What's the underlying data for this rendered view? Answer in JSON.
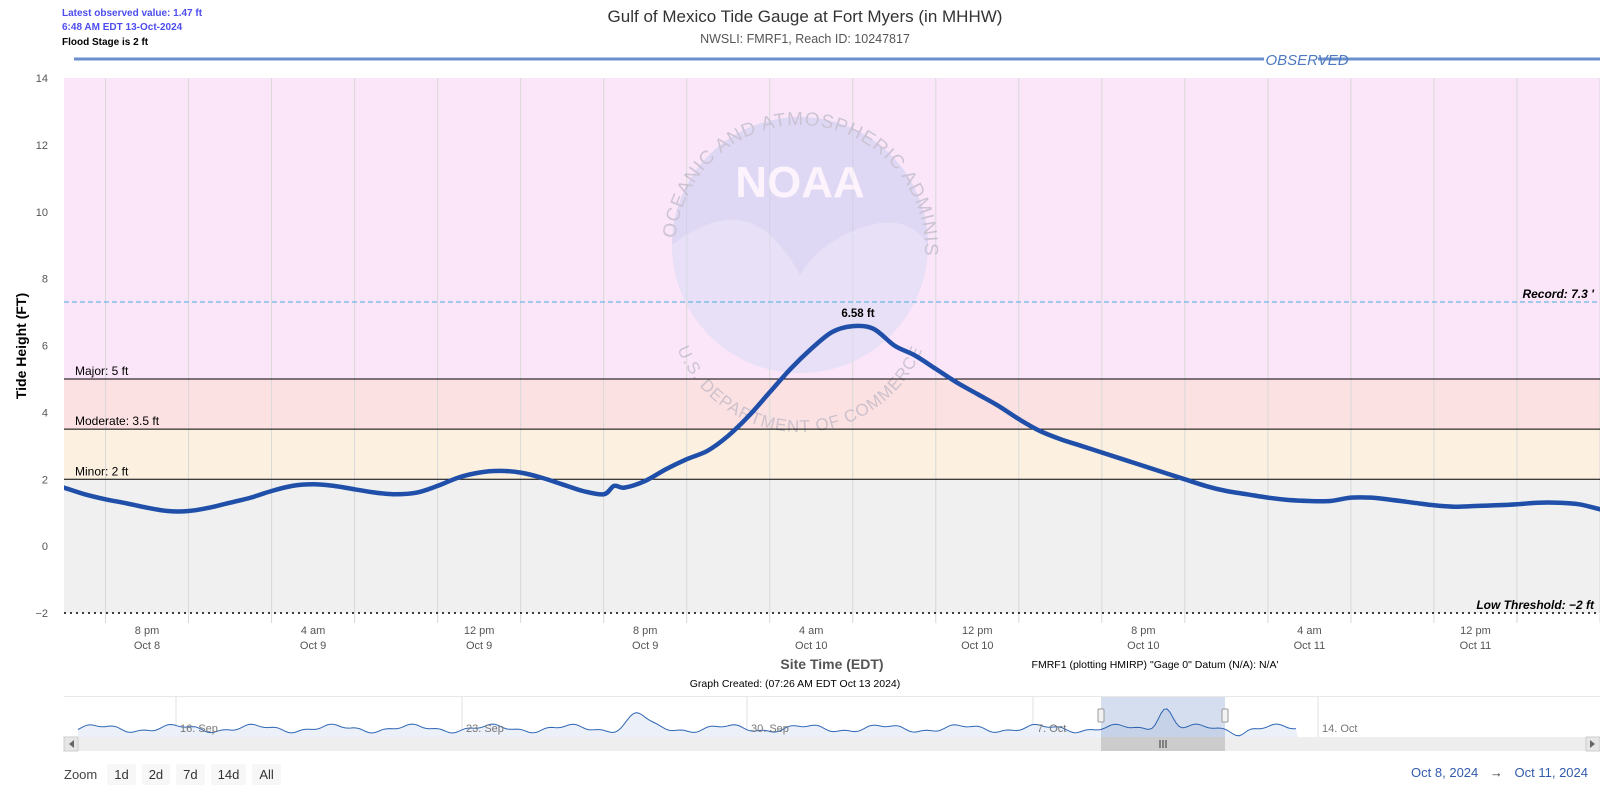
{
  "header": {
    "latest_value": "Latest observed value: 1.47 ft",
    "latest_time": "6:48 AM EDT 13-Oct-2024",
    "flood_stage": "Flood Stage is 2 ft"
  },
  "zoom": {
    "label": "Zoom",
    "buttons": [
      "1d",
      "2d",
      "7d",
      "14d",
      "All"
    ]
  },
  "range": {
    "from": "Oct 8, 2024",
    "arrow": "→",
    "to": "Oct 11, 2024"
  },
  "colors": {
    "series": "#1f4fa8",
    "observed_bar": "#6a8fcc",
    "major_zone": "#fbe6f9",
    "moderate_zone": "#fce1e3",
    "minor_zone": "#fcf1e0",
    "below_zone": "#f0f0f0",
    "record_line": "#6cb6e6",
    "navigator_fill": "#ecf0f8",
    "navigator_line": "#2f67b5"
  },
  "chart_data": {
    "type": "line",
    "title": "Gulf of Mexico Tide Gauge at Fort Myers (in MHHW)",
    "subtitle": "NWSLI: FMRF1, Reach ID: 10247817",
    "observed_label": "OBSERVED",
    "xlabel": "Site Time (EDT)",
    "ylabel": "Tide Height (FT)",
    "datum_note": "FMRF1 (plotting HMIRP) \"Gage 0\" Datum (N/A): N/A'",
    "created_note": "Graph Created: (07:26 AM EDT Oct 13 2024)",
    "ylim": [
      -2,
      14
    ],
    "yticks": [
      -2,
      0,
      2,
      4,
      6,
      8,
      10,
      12,
      14
    ],
    "xlim": [
      "2024-10-08T16:00",
      "2024-10-11T18:00"
    ],
    "xticks": [
      {
        "time": "2024-10-08T20:00",
        "label": "8 pm",
        "date": "Oct 8"
      },
      {
        "time": "2024-10-09T04:00",
        "label": "4 am",
        "date": "Oct 9"
      },
      {
        "time": "2024-10-09T12:00",
        "label": "12 pm",
        "date": "Oct 9"
      },
      {
        "time": "2024-10-09T20:00",
        "label": "8 pm",
        "date": "Oct 9"
      },
      {
        "time": "2024-10-10T04:00",
        "label": "4 am",
        "date": "Oct 10"
      },
      {
        "time": "2024-10-10T12:00",
        "label": "12 pm",
        "date": "Oct 10"
      },
      {
        "time": "2024-10-10T20:00",
        "label": "8 pm",
        "date": "Oct 10"
      },
      {
        "time": "2024-10-11T04:00",
        "label": "4 am",
        "date": "Oct 11"
      },
      {
        "time": "2024-10-11T12:00",
        "label": "12 pm",
        "date": "Oct 11"
      }
    ],
    "thresholds": [
      {
        "name": "Major",
        "label": "Major: 5 ft",
        "value": 5
      },
      {
        "name": "Moderate",
        "label": "Moderate: 3.5 ft",
        "value": 3.5
      },
      {
        "name": "Minor",
        "label": "Minor: 2 ft",
        "value": 2
      },
      {
        "name": "Record",
        "label": "Record: 7.3 '",
        "value": 7.3
      },
      {
        "name": "Low Threshold",
        "label": "Low Threshold: -2 ft",
        "value": -2
      }
    ],
    "peak": {
      "time": "2024-10-10T06:15",
      "value": 6.58,
      "label": "6.58 ft"
    },
    "series": [
      {
        "points": [
          [
            "2024-10-08T16:00",
            1.75
          ],
          [
            "2024-10-08T17:00",
            1.55
          ],
          [
            "2024-10-08T18:00",
            1.4
          ],
          [
            "2024-10-08T19:00",
            1.28
          ],
          [
            "2024-10-08T20:00",
            1.15
          ],
          [
            "2024-10-08T21:00",
            1.05
          ],
          [
            "2024-10-08T22:00",
            1.05
          ],
          [
            "2024-10-08T23:00",
            1.15
          ],
          [
            "2024-10-09T00:00",
            1.3
          ],
          [
            "2024-10-09T01:00",
            1.45
          ],
          [
            "2024-10-09T02:00",
            1.65
          ],
          [
            "2024-10-09T03:00",
            1.8
          ],
          [
            "2024-10-09T04:00",
            1.85
          ],
          [
            "2024-10-09T05:00",
            1.8
          ],
          [
            "2024-10-09T06:00",
            1.7
          ],
          [
            "2024-10-09T07:00",
            1.6
          ],
          [
            "2024-10-09T08:00",
            1.55
          ],
          [
            "2024-10-09T09:00",
            1.6
          ],
          [
            "2024-10-09T10:00",
            1.8
          ],
          [
            "2024-10-09T11:00",
            2.05
          ],
          [
            "2024-10-09T12:00",
            2.2
          ],
          [
            "2024-10-09T13:00",
            2.25
          ],
          [
            "2024-10-09T14:00",
            2.2
          ],
          [
            "2024-10-09T15:00",
            2.05
          ],
          [
            "2024-10-09T16:00",
            1.85
          ],
          [
            "2024-10-09T17:00",
            1.65
          ],
          [
            "2024-10-09T18:00",
            1.55
          ],
          [
            "2024-10-09T18:30",
            1.8
          ],
          [
            "2024-10-09T19:00",
            1.75
          ],
          [
            "2024-10-09T20:00",
            1.95
          ],
          [
            "2024-10-09T21:00",
            2.3
          ],
          [
            "2024-10-09T22:00",
            2.6
          ],
          [
            "2024-10-09T23:00",
            2.85
          ],
          [
            "2024-10-10T00:00",
            3.3
          ],
          [
            "2024-10-10T01:00",
            3.9
          ],
          [
            "2024-10-10T02:00",
            4.6
          ],
          [
            "2024-10-10T03:00",
            5.3
          ],
          [
            "2024-10-10T04:00",
            5.9
          ],
          [
            "2024-10-10T05:00",
            6.4
          ],
          [
            "2024-10-10T06:00",
            6.58
          ],
          [
            "2024-10-10T07:00",
            6.5
          ],
          [
            "2024-10-10T08:00",
            6.0
          ],
          [
            "2024-10-10T09:00",
            5.7
          ],
          [
            "2024-10-10T10:00",
            5.3
          ],
          [
            "2024-10-10T11:00",
            4.9
          ],
          [
            "2024-10-10T12:00",
            4.55
          ],
          [
            "2024-10-10T13:00",
            4.2
          ],
          [
            "2024-10-10T14:00",
            3.8
          ],
          [
            "2024-10-10T15:00",
            3.45
          ],
          [
            "2024-10-10T16:00",
            3.2
          ],
          [
            "2024-10-10T17:00",
            3.0
          ],
          [
            "2024-10-10T18:00",
            2.8
          ],
          [
            "2024-10-10T19:00",
            2.6
          ],
          [
            "2024-10-10T20:00",
            2.4
          ],
          [
            "2024-10-10T21:00",
            2.2
          ],
          [
            "2024-10-10T22:00",
            2.0
          ],
          [
            "2024-10-10T23:00",
            1.8
          ],
          [
            "2024-10-11T00:00",
            1.65
          ],
          [
            "2024-10-11T01:00",
            1.55
          ],
          [
            "2024-10-11T02:00",
            1.45
          ],
          [
            "2024-10-11T03:00",
            1.38
          ],
          [
            "2024-10-11T04:00",
            1.35
          ],
          [
            "2024-10-11T05:00",
            1.35
          ],
          [
            "2024-10-11T06:00",
            1.45
          ],
          [
            "2024-10-11T07:00",
            1.45
          ],
          [
            "2024-10-11T08:00",
            1.38
          ],
          [
            "2024-10-11T09:00",
            1.3
          ],
          [
            "2024-10-11T10:00",
            1.22
          ],
          [
            "2024-10-11T11:00",
            1.18
          ],
          [
            "2024-10-11T12:00",
            1.2
          ],
          [
            "2024-10-11T13:00",
            1.22
          ],
          [
            "2024-10-11T14:00",
            1.25
          ],
          [
            "2024-10-11T15:00",
            1.3
          ],
          [
            "2024-10-11T16:00",
            1.3
          ],
          [
            "2024-10-11T17:00",
            1.25
          ],
          [
            "2024-10-11T18:00",
            1.1
          ]
        ]
      }
    ],
    "navigator": {
      "labels": [
        "16. Sep",
        "23. Sep",
        "30. Sep",
        "7. Oct",
        "14. Oct"
      ],
      "selection": [
        "Oct 8, 2024",
        "Oct 11, 2024"
      ]
    },
    "watermark": {
      "logo_text": "NOAA",
      "ring_text_top": "NATIONAL OCEANIC AND ATMOSPHERIC ADMINISTRATION",
      "ring_text_bottom": "U.S. DEPARTMENT OF COMMERCE"
    }
  }
}
